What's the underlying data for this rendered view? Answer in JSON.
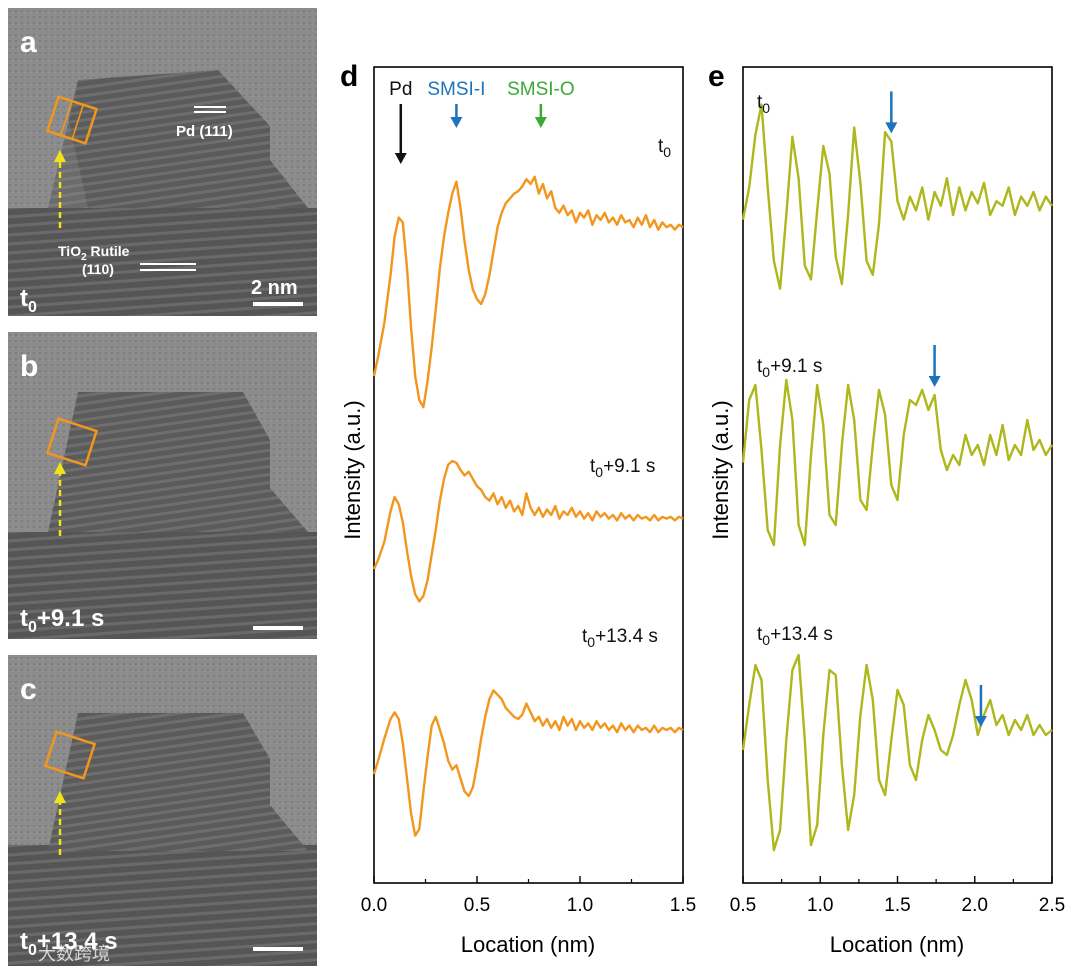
{
  "panels": {
    "a": {
      "letter": "a",
      "time": "t",
      "sub": "0",
      "suffix": "",
      "scale_label": "2 nm",
      "lattice_pd": "Pd (111)",
      "lattice_tio2_line1_a": "TiO",
      "lattice_tio2_line1_sub": "2",
      "lattice_tio2_line1_b": " Rutile",
      "lattice_tio2_line2": "(110)"
    },
    "b": {
      "letter": "b",
      "time": "t",
      "sub": "0",
      "suffix": "+9.1 s"
    },
    "c": {
      "letter": "c",
      "time": "t",
      "sub": "0",
      "suffix": "+13.4 s"
    }
  },
  "watermark": "大数跨境",
  "colors": {
    "orange": "#F2961E",
    "olive": "#AEB71B",
    "blue": "#1C74BC",
    "green": "#3AAA35",
    "black": "#111111",
    "yellow": "#F2E21A",
    "tem_bg": "#7a7a7a"
  },
  "chart_data": [
    {
      "id": "d",
      "type": "line",
      "panel_label": "d",
      "xlabel": "Location (nm)",
      "ylabel": "Intensity (a.u.)",
      "xlim": [
        0.0,
        1.5
      ],
      "xticks": [
        "0.0",
        "0.5",
        "1.0",
        "1.5"
      ],
      "xtick_values": [
        0.0,
        0.5,
        1.0,
        1.5
      ],
      "markers": [
        {
          "label": "Pd",
          "x": 0.13,
          "color": "#111111"
        },
        {
          "label": "SMSI-I",
          "x": 0.4,
          "color": "#1C74BC"
        },
        {
          "label": "SMSI-O",
          "x": 0.81,
          "color": "#3AAA35"
        }
      ],
      "series": [
        {
          "name": "t0",
          "label_main": "t",
          "label_sub": "0",
          "label_suffix": "",
          "color": "#F2961E",
          "offset": 2.0,
          "x": [
            0.0,
            0.02,
            0.05,
            0.08,
            0.1,
            0.12,
            0.14,
            0.16,
            0.18,
            0.2,
            0.22,
            0.24,
            0.26,
            0.28,
            0.3,
            0.32,
            0.34,
            0.36,
            0.38,
            0.4,
            0.42,
            0.44,
            0.46,
            0.48,
            0.5,
            0.52,
            0.54,
            0.56,
            0.58,
            0.6,
            0.62,
            0.64,
            0.66,
            0.68,
            0.7,
            0.72,
            0.74,
            0.76,
            0.78,
            0.8,
            0.82,
            0.84,
            0.86,
            0.88,
            0.9,
            0.92,
            0.94,
            0.96,
            0.98,
            1.0,
            1.02,
            1.04,
            1.06,
            1.08,
            1.1,
            1.12,
            1.14,
            1.16,
            1.18,
            1.2,
            1.22,
            1.24,
            1.26,
            1.28,
            1.3,
            1.32,
            1.34,
            1.36,
            1.38,
            1.4,
            1.42,
            1.44,
            1.46,
            1.48,
            1.5
          ],
          "values": [
            0.1,
            0.18,
            0.32,
            0.52,
            0.68,
            0.76,
            0.74,
            0.55,
            0.3,
            0.1,
            0.0,
            -0.03,
            0.08,
            0.22,
            0.38,
            0.55,
            0.68,
            0.78,
            0.86,
            0.91,
            0.8,
            0.66,
            0.54,
            0.46,
            0.42,
            0.4,
            0.44,
            0.52,
            0.62,
            0.72,
            0.78,
            0.82,
            0.84,
            0.86,
            0.87,
            0.89,
            0.92,
            0.9,
            0.93,
            0.86,
            0.9,
            0.84,
            0.87,
            0.8,
            0.78,
            0.81,
            0.77,
            0.79,
            0.74,
            0.78,
            0.76,
            0.79,
            0.73,
            0.77,
            0.75,
            0.78,
            0.74,
            0.76,
            0.73,
            0.77,
            0.74,
            0.75,
            0.72,
            0.76,
            0.73,
            0.77,
            0.72,
            0.75,
            0.71,
            0.74,
            0.72,
            0.73,
            0.71,
            0.73,
            0.72
          ]
        },
        {
          "name": "t0+9.1 s",
          "label_main": "t",
          "label_sub": "0",
          "label_suffix": "+9.1 s",
          "color": "#F2961E",
          "offset": 1.0,
          "x": [
            0.0,
            0.02,
            0.05,
            0.08,
            0.1,
            0.12,
            0.14,
            0.16,
            0.18,
            0.2,
            0.22,
            0.24,
            0.26,
            0.28,
            0.3,
            0.32,
            0.34,
            0.36,
            0.38,
            0.4,
            0.42,
            0.44,
            0.46,
            0.48,
            0.5,
            0.52,
            0.54,
            0.56,
            0.58,
            0.6,
            0.62,
            0.64,
            0.66,
            0.68,
            0.7,
            0.72,
            0.74,
            0.76,
            0.78,
            0.8,
            0.82,
            0.84,
            0.86,
            0.88,
            0.9,
            0.92,
            0.94,
            0.96,
            0.98,
            1.0,
            1.02,
            1.04,
            1.06,
            1.08,
            1.1,
            1.12,
            1.14,
            1.16,
            1.18,
            1.2,
            1.22,
            1.24,
            1.26,
            1.28,
            1.3,
            1.32,
            1.34,
            1.36,
            1.38,
            1.4,
            1.42,
            1.44,
            1.46,
            1.48,
            1.5
          ],
          "values": [
            0.2,
            0.25,
            0.35,
            0.52,
            0.6,
            0.56,
            0.46,
            0.3,
            0.16,
            0.06,
            0.02,
            0.05,
            0.14,
            0.28,
            0.42,
            0.58,
            0.7,
            0.78,
            0.8,
            0.79,
            0.75,
            0.72,
            0.74,
            0.7,
            0.66,
            0.64,
            0.6,
            0.58,
            0.62,
            0.56,
            0.6,
            0.54,
            0.58,
            0.52,
            0.55,
            0.5,
            0.62,
            0.54,
            0.5,
            0.54,
            0.49,
            0.53,
            0.5,
            0.55,
            0.48,
            0.52,
            0.5,
            0.54,
            0.49,
            0.52,
            0.48,
            0.51,
            0.47,
            0.52,
            0.49,
            0.51,
            0.48,
            0.5,
            0.47,
            0.51,
            0.48,
            0.5,
            0.47,
            0.5,
            0.48,
            0.49,
            0.47,
            0.5,
            0.47,
            0.49,
            0.48,
            0.49,
            0.47,
            0.49,
            0.48
          ]
        },
        {
          "name": "t0+13.4 s",
          "label_main": "t",
          "label_sub": "0",
          "label_suffix": "+13.4 s",
          "color": "#F2961E",
          "offset": 0.0,
          "x": [
            0.0,
            0.02,
            0.05,
            0.08,
            0.1,
            0.12,
            0.14,
            0.16,
            0.18,
            0.2,
            0.22,
            0.24,
            0.26,
            0.28,
            0.3,
            0.32,
            0.34,
            0.36,
            0.38,
            0.4,
            0.42,
            0.44,
            0.46,
            0.48,
            0.5,
            0.52,
            0.54,
            0.56,
            0.58,
            0.6,
            0.62,
            0.64,
            0.66,
            0.68,
            0.7,
            0.72,
            0.74,
            0.76,
            0.78,
            0.8,
            0.82,
            0.84,
            0.86,
            0.88,
            0.9,
            0.92,
            0.94,
            0.96,
            0.98,
            1.0,
            1.02,
            1.04,
            1.06,
            1.08,
            1.1,
            1.12,
            1.14,
            1.16,
            1.18,
            1.2,
            1.22,
            1.24,
            1.26,
            1.28,
            1.3,
            1.32,
            1.34,
            1.36,
            1.38,
            1.4,
            1.42,
            1.44,
            1.46,
            1.48,
            1.5
          ],
          "values": [
            0.3,
            0.36,
            0.46,
            0.55,
            0.58,
            0.55,
            0.44,
            0.28,
            0.12,
            0.02,
            0.05,
            0.22,
            0.38,
            0.52,
            0.56,
            0.5,
            0.44,
            0.36,
            0.32,
            0.34,
            0.28,
            0.22,
            0.2,
            0.24,
            0.34,
            0.46,
            0.56,
            0.64,
            0.68,
            0.66,
            0.64,
            0.6,
            0.58,
            0.56,
            0.55,
            0.57,
            0.62,
            0.58,
            0.54,
            0.56,
            0.52,
            0.55,
            0.51,
            0.54,
            0.5,
            0.56,
            0.52,
            0.55,
            0.5,
            0.54,
            0.51,
            0.53,
            0.5,
            0.54,
            0.51,
            0.53,
            0.5,
            0.52,
            0.49,
            0.53,
            0.5,
            0.52,
            0.49,
            0.52,
            0.5,
            0.51,
            0.49,
            0.52,
            0.49,
            0.51,
            0.5,
            0.51,
            0.49,
            0.51,
            0.5
          ]
        }
      ]
    },
    {
      "id": "e",
      "type": "line",
      "panel_label": "e",
      "xlabel": "Location (nm)",
      "ylabel": "Intensity (a.u.)",
      "xlim": [
        0.5,
        2.5
      ],
      "xticks": [
        "0.5",
        "1.0",
        "1.5",
        "2.0",
        "2.5"
      ],
      "xtick_values": [
        0.5,
        1.0,
        1.5,
        2.0,
        2.5
      ],
      "series": [
        {
          "name": "t0",
          "label_main": "t",
          "label_sub": "0",
          "label_suffix": "",
          "color": "#AEB71B",
          "offset": 2.0,
          "arrow_x": 1.46,
          "x": [
            0.5,
            0.54,
            0.58,
            0.62,
            0.66,
            0.7,
            0.74,
            0.78,
            0.82,
            0.86,
            0.9,
            0.94,
            0.98,
            1.02,
            1.06,
            1.1,
            1.14,
            1.18,
            1.22,
            1.26,
            1.3,
            1.34,
            1.38,
            1.42,
            1.46,
            1.5,
            1.54,
            1.58,
            1.62,
            1.66,
            1.7,
            1.74,
            1.78,
            1.82,
            1.86,
            1.9,
            1.94,
            1.98,
            2.02,
            2.06,
            2.1,
            2.14,
            2.18,
            2.22,
            2.26,
            2.3,
            2.34,
            2.38,
            2.42,
            2.46,
            2.5
          ],
          "values": [
            0.48,
            0.62,
            0.85,
            0.98,
            0.62,
            0.3,
            0.18,
            0.5,
            0.84,
            0.66,
            0.28,
            0.22,
            0.52,
            0.8,
            0.68,
            0.32,
            0.2,
            0.5,
            0.88,
            0.64,
            0.3,
            0.24,
            0.46,
            0.86,
            0.82,
            0.56,
            0.48,
            0.58,
            0.52,
            0.62,
            0.48,
            0.6,
            0.54,
            0.66,
            0.5,
            0.62,
            0.52,
            0.6,
            0.55,
            0.64,
            0.5,
            0.56,
            0.54,
            0.62,
            0.5,
            0.58,
            0.54,
            0.6,
            0.52,
            0.58,
            0.54
          ]
        },
        {
          "name": "t0+9.1 s",
          "label_main": "t",
          "label_sub": "0",
          "label_suffix": "+9.1 s",
          "color": "#AEB71B",
          "offset": 1.0,
          "arrow_x": 1.74,
          "x": [
            0.5,
            0.54,
            0.58,
            0.62,
            0.66,
            0.7,
            0.74,
            0.78,
            0.82,
            0.86,
            0.9,
            0.94,
            0.98,
            1.02,
            1.06,
            1.1,
            1.14,
            1.18,
            1.22,
            1.26,
            1.3,
            1.34,
            1.38,
            1.42,
            1.46,
            1.5,
            1.54,
            1.58,
            1.62,
            1.66,
            1.7,
            1.74,
            1.78,
            1.82,
            1.86,
            1.9,
            1.94,
            1.98,
            2.02,
            2.06,
            2.1,
            2.14,
            2.18,
            2.22,
            2.26,
            2.3,
            2.34,
            2.38,
            2.42,
            2.46,
            2.5
          ],
          "values": [
            0.55,
            0.8,
            0.86,
            0.6,
            0.28,
            0.22,
            0.62,
            0.88,
            0.72,
            0.3,
            0.22,
            0.58,
            0.86,
            0.7,
            0.34,
            0.3,
            0.62,
            0.86,
            0.72,
            0.4,
            0.36,
            0.62,
            0.84,
            0.74,
            0.46,
            0.4,
            0.66,
            0.8,
            0.78,
            0.84,
            0.76,
            0.82,
            0.6,
            0.52,
            0.58,
            0.54,
            0.66,
            0.58,
            0.62,
            0.54,
            0.66,
            0.58,
            0.7,
            0.56,
            0.62,
            0.58,
            0.72,
            0.6,
            0.64,
            0.58,
            0.62
          ]
        },
        {
          "name": "t0+13.4 s",
          "label_main": "t",
          "label_sub": "0",
          "label_suffix": "+13.4 s",
          "color": "#AEB71B",
          "offset": 0.0,
          "arrow_x": 2.04,
          "x": [
            0.5,
            0.54,
            0.58,
            0.62,
            0.66,
            0.7,
            0.74,
            0.78,
            0.82,
            0.86,
            0.9,
            0.94,
            0.98,
            1.02,
            1.06,
            1.1,
            1.14,
            1.18,
            1.22,
            1.26,
            1.3,
            1.34,
            1.38,
            1.42,
            1.46,
            1.5,
            1.54,
            1.58,
            1.62,
            1.66,
            1.7,
            1.74,
            1.78,
            1.82,
            1.86,
            1.9,
            1.94,
            1.98,
            2.02,
            2.06,
            2.1,
            2.14,
            2.18,
            2.22,
            2.26,
            2.3,
            2.34,
            2.38,
            2.42,
            2.46,
            2.5
          ],
          "values": [
            0.52,
            0.7,
            0.86,
            0.8,
            0.4,
            0.12,
            0.2,
            0.56,
            0.84,
            0.9,
            0.56,
            0.14,
            0.22,
            0.58,
            0.84,
            0.82,
            0.46,
            0.2,
            0.34,
            0.66,
            0.86,
            0.72,
            0.4,
            0.34,
            0.56,
            0.76,
            0.7,
            0.46,
            0.4,
            0.56,
            0.66,
            0.6,
            0.52,
            0.5,
            0.58,
            0.7,
            0.8,
            0.72,
            0.58,
            0.66,
            0.72,
            0.62,
            0.66,
            0.58,
            0.64,
            0.6,
            0.66,
            0.58,
            0.62,
            0.58,
            0.6
          ]
        }
      ]
    }
  ]
}
